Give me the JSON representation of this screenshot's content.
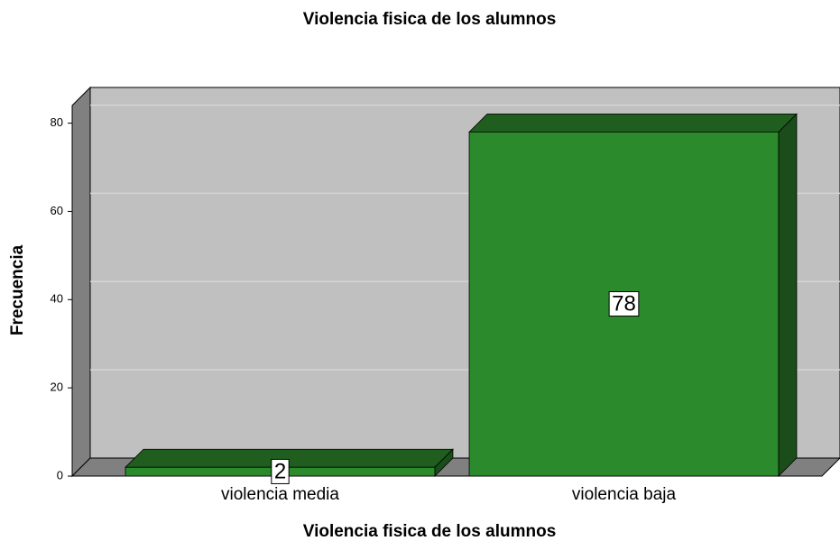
{
  "chart_data": {
    "type": "bar",
    "title": "Violencia fisica de los alumnos",
    "x_label": "Violencia fisica de los alumnos",
    "y_label": "Frecuencia",
    "categories": [
      "violencia media",
      "violencia baja"
    ],
    "values": [
      2,
      78
    ],
    "color": "#2b8a2b",
    "ylim": [
      0,
      84
    ],
    "yticks": [
      0,
      20,
      40,
      60,
      80
    ],
    "grid": true
  }
}
